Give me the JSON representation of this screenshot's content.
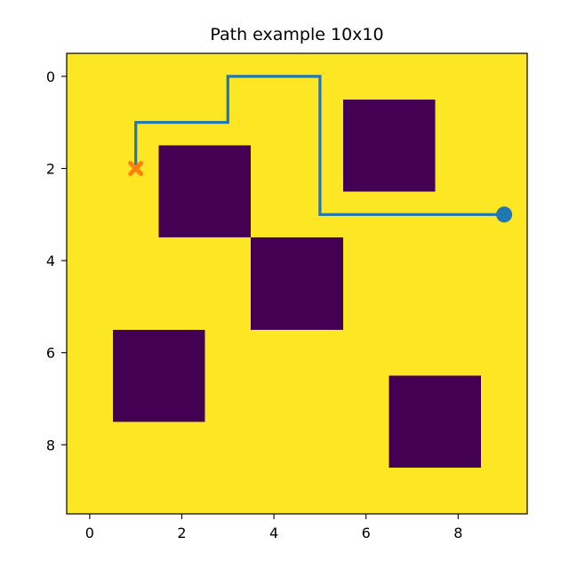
{
  "chart_data": {
    "type": "heatmap",
    "title": "Path example 10x10",
    "xlabel": "",
    "ylabel": "",
    "grid_size": [
      10,
      10
    ],
    "xlim": [
      -0.5,
      9.5
    ],
    "ylim": [
      9.5,
      -0.5
    ],
    "x_ticks": [
      0,
      2,
      4,
      6,
      8
    ],
    "y_ticks": [
      0,
      2,
      4,
      6,
      8
    ],
    "free_color": "#fde725",
    "obstacle_color": "#440154",
    "obstacle_cells": [
      [
        6,
        1
      ],
      [
        7,
        1
      ],
      [
        6,
        2
      ],
      [
        7,
        2
      ],
      [
        2,
        2
      ],
      [
        3,
        2
      ],
      [
        2,
        3
      ],
      [
        3,
        3
      ],
      [
        4,
        4
      ],
      [
        5,
        4
      ],
      [
        4,
        5
      ],
      [
        5,
        5
      ],
      [
        1,
        6
      ],
      [
        2,
        6
      ],
      [
        1,
        7
      ],
      [
        2,
        7
      ],
      [
        7,
        7
      ],
      [
        8,
        7
      ],
      [
        7,
        8
      ],
      [
        8,
        8
      ]
    ],
    "path": {
      "color": "#1f77b4",
      "points": [
        [
          9,
          3
        ],
        [
          5,
          3
        ],
        [
          5,
          0
        ],
        [
          3,
          0
        ],
        [
          3,
          1
        ],
        [
          1,
          1
        ],
        [
          1,
          2
        ]
      ]
    },
    "start": {
      "x": 9,
      "y": 3,
      "marker": "circle",
      "color": "#1f77b4"
    },
    "goal": {
      "x": 1,
      "y": 2,
      "marker": "x",
      "color": "#ff7f0e"
    },
    "grid": false,
    "legend": "none"
  }
}
